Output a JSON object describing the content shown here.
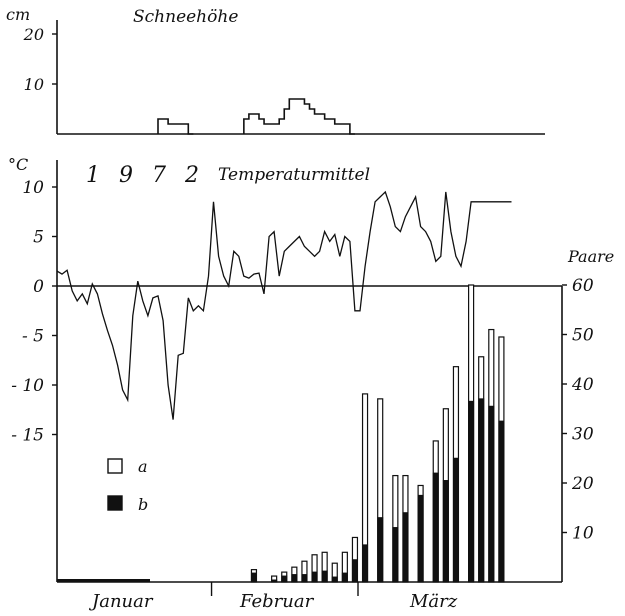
{
  "chart_data": [
    {
      "type": "area",
      "title": "Schneehöhe",
      "ylabel": "cm",
      "ylim": [
        0,
        25
      ],
      "yticks": [
        10,
        20
      ],
      "x_unit": "day of period (1 Jan – 31 Mar 1972)",
      "x": [
        21,
        22,
        23,
        24,
        25,
        26,
        27,
        38,
        39,
        40,
        41,
        42,
        43,
        44,
        45,
        46,
        47,
        48,
        49,
        50,
        51,
        52,
        53,
        54,
        55,
        56,
        57,
        58,
        59
      ],
      "values": [
        3,
        3,
        2,
        2,
        2,
        2,
        0,
        3,
        4,
        4,
        3,
        2,
        2,
        2,
        3,
        5,
        7,
        7,
        7,
        6,
        5,
        4,
        4,
        3,
        3,
        2,
        2,
        2,
        0
      ],
      "grid": false
    },
    {
      "type": "line",
      "year_label": "1 9 7 2",
      "title": "Temperaturmittel",
      "ylabel": "°C",
      "ylim": [
        -20,
        12
      ],
      "yticks": [
        10,
        5,
        0,
        -5,
        -10,
        -15
      ],
      "x": [
        1,
        2,
        3,
        4,
        5,
        6,
        7,
        8,
        9,
        10,
        11,
        12,
        13,
        14,
        15,
        16,
        17,
        18,
        19,
        20,
        21,
        22,
        23,
        24,
        25,
        26,
        27,
        28,
        29,
        30,
        31,
        32,
        33,
        34,
        35,
        36,
        37,
        38,
        39,
        40,
        41,
        42,
        43,
        44,
        45,
        46,
        47,
        48,
        49,
        50,
        51,
        52,
        53,
        54,
        55,
        56,
        57,
        58,
        59,
        60,
        61,
        62,
        63,
        64,
        65,
        66,
        67,
        68,
        69,
        70,
        71,
        72,
        73,
        74,
        75,
        76,
        77,
        78,
        79,
        80,
        81,
        82,
        83,
        84,
        85,
        86,
        87,
        88,
        89,
        90,
        91
      ],
      "values": [
        1.5,
        1.2,
        1.6,
        -0.5,
        -1.5,
        -0.8,
        -1.8,
        0.2,
        -0.8,
        -2.8,
        -4.5,
        -6.0,
        -8.0,
        -10.5,
        -11.5,
        -3.0,
        0.5,
        -1.5,
        -3.0,
        -1.2,
        -1.0,
        -3.5,
        -10.0,
        -13.5,
        -7.0,
        -6.8,
        -1.2,
        -2.5,
        -2.0,
        -2.5,
        1.0,
        8.5,
        3.0,
        1.0,
        0.0,
        3.5,
        3.0,
        1.0,
        0.8,
        1.2,
        1.3,
        -0.8,
        5.0,
        5.5,
        1.0,
        3.5,
        4.0,
        4.5,
        5.0,
        4.0,
        3.5,
        3.0,
        3.5,
        5.5,
        4.5,
        5.2,
        3.0,
        5.0,
        4.5,
        -2.5,
        -2.5,
        2.0,
        5.5,
        8.5,
        9.0,
        9.5,
        8.0,
        6.0,
        5.5,
        7.0,
        8.0,
        9.0,
        6.0,
        5.5,
        4.5,
        2.5,
        3.0,
        9.5,
        5.5,
        3.0,
        2.0,
        4.5,
        8.5,
        8.5,
        8.5,
        8.5,
        8.5,
        8.5,
        8.5,
        8.5,
        8.5
      ],
      "zero_line": true
    },
    {
      "type": "bar",
      "ylabel": "Paare",
      "ylim": [
        0,
        60
      ],
      "yticks": [
        10,
        20,
        30,
        40,
        50,
        60
      ],
      "legend": [
        {
          "key": "a",
          "label": "a",
          "fill": "open"
        },
        {
          "key": "b",
          "label": "b",
          "fill": "filled"
        }
      ],
      "legend_position": "left",
      "x_unit": "day of period",
      "bars": [
        {
          "x": 40,
          "a": 2.5,
          "b": 1.8
        },
        {
          "x": 44,
          "a": 1.2,
          "b": 0.4
        },
        {
          "x": 46,
          "a": 2.0,
          "b": 1.2
        },
        {
          "x": 48,
          "a": 3.0,
          "b": 1.5
        },
        {
          "x": 50,
          "a": 4.2,
          "b": 1.5
        },
        {
          "x": 52,
          "a": 5.5,
          "b": 2.0
        },
        {
          "x": 54,
          "a": 6.0,
          "b": 2.2
        },
        {
          "x": 56,
          "a": 3.8,
          "b": 1.0
        },
        {
          "x": 58,
          "a": 6.0,
          "b": 1.8
        },
        {
          "x": 60,
          "a": 9.0,
          "b": 4.5
        },
        {
          "x": 62,
          "a": 38.0,
          "b": 7.5
        },
        {
          "x": 65,
          "a": 37.0,
          "b": 13.0
        },
        {
          "x": 68,
          "a": 21.5,
          "b": 11.0
        },
        {
          "x": 70,
          "a": 21.5,
          "b": 14.0
        },
        {
          "x": 73,
          "a": 19.5,
          "b": 17.5
        },
        {
          "x": 76,
          "a": 28.5,
          "b": 22.0
        },
        {
          "x": 78,
          "a": 35.0,
          "b": 20.5
        },
        {
          "x": 80,
          "a": 43.5,
          "b": 25.0
        },
        {
          "x": 83,
          "a": 60.0,
          "b": 36.5
        },
        {
          "x": 85,
          "a": 45.5,
          "b": 37.0
        },
        {
          "x": 87,
          "a": 51.0,
          "b": 35.5
        },
        {
          "x": 89,
          "a": 49.5,
          "b": 32.5
        }
      ]
    }
  ],
  "months": [
    "Januar",
    "Februar",
    "März"
  ]
}
